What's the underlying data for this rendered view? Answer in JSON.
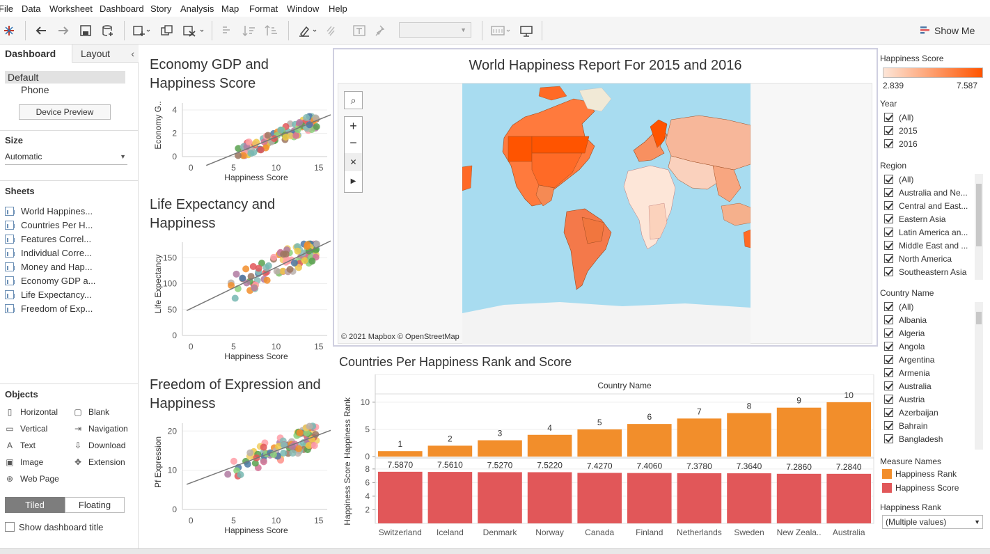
{
  "menu": [
    "File",
    "Data",
    "Worksheet",
    "Dashboard",
    "Story",
    "Analysis",
    "Map",
    "Format",
    "Window",
    "Help"
  ],
  "toolbar": {
    "show_me": "Show Me"
  },
  "left_panel": {
    "tab_dashboard": "Dashboard",
    "tab_layout": "Layout",
    "devices": [
      "Default",
      "Phone"
    ],
    "device_preview": "Device Preview",
    "size_heading": "Size",
    "size_value": "Automatic",
    "sheets_heading": "Sheets",
    "sheets": [
      "World Happines...",
      "Countries Per H...",
      "Features Correl...",
      "Individual Corre...",
      "Money and Hap...",
      "Economy GDP a...",
      "Life Expectancy...",
      "Freedom of Exp..."
    ],
    "objects_heading": "Objects",
    "objects_left": [
      "Horizontal",
      "Vertical",
      "Text",
      "Image",
      "Web Page"
    ],
    "objects_right": [
      "Blank",
      "Navigation",
      "Download",
      "Extension"
    ],
    "tiled": "Tiled",
    "floating": "Floating",
    "show_title": "Show dashboard title"
  },
  "scatter": [
    {
      "title_l1": "Economy GDP and",
      "title_l2": "Happiness Score",
      "ylabel": "Economy G..",
      "xlabel": "Happiness Score",
      "xticks": [
        "0",
        "5",
        "10",
        "15"
      ],
      "yticks": [
        "4",
        "2",
        "0"
      ]
    },
    {
      "title_l1": "Life Expectancy and",
      "title_l2": "Happiness",
      "ylabel": "Life Expectancy",
      "xlabel": "Happiness Score",
      "xticks": [
        "0",
        "5",
        "10",
        "15"
      ],
      "yticks": [
        "150",
        "100",
        "50",
        "0"
      ]
    },
    {
      "title_l1": "Freedom of Expression and",
      "title_l2": "Happiness",
      "ylabel": "Pf Expression",
      "xlabel": "Happiness Score",
      "xticks": [
        "0",
        "5",
        "10",
        "15"
      ],
      "yticks": [
        "20",
        "10",
        "0"
      ]
    }
  ],
  "map": {
    "title": "World Happiness Report For 2015 and 2016",
    "attribution": "© 2021 Mapbox © OpenStreetMap"
  },
  "bar_title": "Countries Per Happiness Rank  and Score",
  "chart_data": {
    "type": "bar",
    "xlabel": "Country Name",
    "categories": [
      "Switzerland",
      "Iceland",
      "Denmark",
      "Norway",
      "Canada",
      "Finland",
      "Netherlands",
      "Sweden",
      "New Zeala..",
      "Australia"
    ],
    "series": [
      {
        "name": "Happiness Rank",
        "axis_label": "Happiness Rank",
        "values": [
          1,
          2,
          3,
          4,
          5,
          6,
          7,
          8,
          9,
          10
        ],
        "labels": [
          "1",
          "2",
          "3",
          "4",
          "5",
          "6",
          "7",
          "8",
          "9",
          "10"
        ],
        "color": "#f28e2b",
        "ylim": [
          0,
          10.5
        ],
        "yticks": [
          "10",
          "5",
          "0"
        ]
      },
      {
        "name": "Happiness Score",
        "axis_label": "Happiness Score",
        "values": [
          7.587,
          7.561,
          7.527,
          7.522,
          7.427,
          7.406,
          7.378,
          7.364,
          7.286,
          7.284
        ],
        "labels": [
          "7.5870",
          "7.5610",
          "7.5270",
          "7.5220",
          "7.4270",
          "7.4060",
          "7.3780",
          "7.3640",
          "7.2860",
          "7.2840"
        ],
        "color": "#e15759",
        "ylim": [
          0,
          8.8
        ],
        "yticks": [
          "8",
          "6",
          "4",
          "2"
        ]
      }
    ]
  },
  "right_panel": {
    "legend_title": "Happiness Score",
    "legend_min": "2.839",
    "legend_max": "7.587",
    "year_heading": "Year",
    "years": [
      "(All)",
      "2015",
      "2016"
    ],
    "region_heading": "Region",
    "regions": [
      "(All)",
      "Australia and Ne...",
      "Central and East...",
      "Eastern Asia",
      "Latin America an...",
      "Middle East and ...",
      "North America",
      "Southeastern Asia"
    ],
    "country_heading": "Country Name",
    "countries": [
      "(All)",
      "Albania",
      "Algeria",
      "Angola",
      "Argentina",
      "Armenia",
      "Australia",
      "Austria",
      "Azerbaijan",
      "Bahrain",
      "Bangladesh"
    ],
    "measure_heading": "Measure Names",
    "measures": [
      "Happiness Rank",
      "Happiness Score"
    ],
    "rank_heading": "Happiness Rank",
    "rank_value": "(Multiple values)"
  },
  "colors": {
    "rank": "#f28e2b",
    "score": "#e15759",
    "map_high": "#ff5400",
    "map_low": "#fde6d8",
    "ocean": "#a8dcf0"
  }
}
